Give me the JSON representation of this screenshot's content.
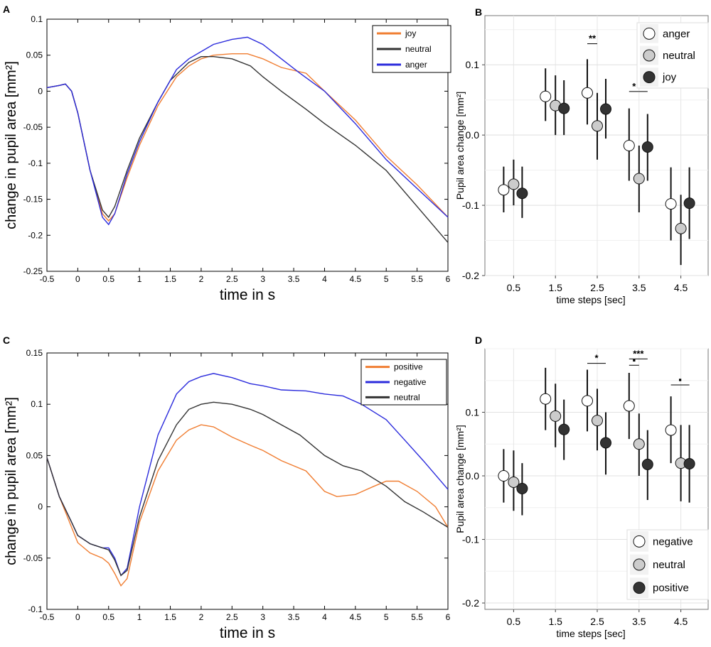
{
  "figure": {
    "panel_labels": [
      "A",
      "B",
      "C",
      "D"
    ]
  },
  "chart_data": [
    {
      "id": "A",
      "type": "line",
      "xlabel": "time in s",
      "ylabel": "change in pupil area [mm²]",
      "xlim": [
        -0.5,
        6
      ],
      "ylim": [
        -0.25,
        0.1
      ],
      "xticks": [
        "-0.5",
        "0",
        "0.5",
        "1",
        "1.5",
        "2",
        "2.5",
        "3",
        "3.5",
        "4",
        "4.5",
        "5",
        "5.5",
        "6"
      ],
      "yticks": [
        "-0.25",
        "-0.2",
        "-0.15",
        "-0.1",
        "-0.05",
        "0",
        "0.05",
        "0.1"
      ],
      "legend": [
        "joy",
        "neutral",
        "anger"
      ],
      "colors": {
        "joy": "#f07d31",
        "neutral": "#333333",
        "anger": "#2b2bdc"
      },
      "series": [
        {
          "name": "joy",
          "x": [
            -0.5,
            -0.3,
            -0.2,
            -0.1,
            0,
            0.2,
            0.4,
            0.5,
            0.6,
            0.8,
            1,
            1.3,
            1.6,
            1.8,
            2,
            2.2,
            2.5,
            2.75,
            3,
            3.3,
            3.7,
            4,
            4.5,
            5,
            5.5,
            6
          ],
          "y": [
            0.005,
            0.008,
            0.01,
            0.0,
            -0.03,
            -0.11,
            -0.17,
            -0.18,
            -0.17,
            -0.12,
            -0.075,
            -0.02,
            0.02,
            0.035,
            0.045,
            0.05,
            0.052,
            0.052,
            0.045,
            0.033,
            0.025,
            0.0,
            -0.04,
            -0.09,
            -0.13,
            -0.175
          ]
        },
        {
          "name": "neutral",
          "x": [
            -0.5,
            -0.3,
            -0.2,
            -0.1,
            0,
            0.2,
            0.4,
            0.5,
            0.6,
            0.8,
            1,
            1.3,
            1.5,
            1.8,
            2,
            2.2,
            2.5,
            2.8,
            3,
            3.3,
            3.7,
            4,
            4.5,
            5,
            5.5,
            6
          ],
          "y": [
            0.005,
            0.008,
            0.01,
            0.0,
            -0.03,
            -0.11,
            -0.165,
            -0.175,
            -0.16,
            -0.11,
            -0.065,
            -0.015,
            0.015,
            0.04,
            0.048,
            0.048,
            0.045,
            0.035,
            0.02,
            0.0,
            -0.025,
            -0.045,
            -0.075,
            -0.11,
            -0.16,
            -0.21
          ]
        },
        {
          "name": "anger",
          "x": [
            -0.5,
            -0.3,
            -0.2,
            -0.1,
            0,
            0.2,
            0.4,
            0.5,
            0.6,
            0.8,
            1,
            1.3,
            1.6,
            1.8,
            2,
            2.2,
            2.5,
            2.75,
            3,
            3.3,
            3.6,
            4,
            4.5,
            5,
            5.5,
            6
          ],
          "y": [
            0.005,
            0.008,
            0.01,
            0.0,
            -0.03,
            -0.11,
            -0.175,
            -0.185,
            -0.17,
            -0.115,
            -0.07,
            -0.015,
            0.03,
            0.045,
            0.055,
            0.065,
            0.072,
            0.075,
            0.065,
            0.045,
            0.025,
            0.0,
            -0.045,
            -0.095,
            -0.135,
            -0.175
          ]
        }
      ]
    },
    {
      "id": "B",
      "type": "scatter",
      "xlabel": "time steps [sec]",
      "ylabel": "Pupil area change [mm²]",
      "ylim": [
        -0.2,
        0.17
      ],
      "categories": [
        "0.5",
        "1.5",
        "2.5",
        "3.5",
        "4.5"
      ],
      "yticks": [
        "-0.2",
        "-0.1",
        "0.0",
        "0.1"
      ],
      "legend": [
        "anger",
        "neutral",
        "joy"
      ],
      "fills": {
        "anger": "#ffffff",
        "neutral": "#cccccc",
        "joy": "#333333"
      },
      "series": [
        {
          "name": "anger",
          "values": [
            -0.078,
            0.055,
            0.06,
            -0.015,
            -0.098
          ],
          "lower": [
            -0.11,
            0.02,
            0.015,
            -0.065,
            -0.15
          ],
          "upper": [
            -0.045,
            0.095,
            0.108,
            0.038,
            -0.046
          ]
        },
        {
          "name": "neutral",
          "values": [
            -0.07,
            0.042,
            0.013,
            -0.062,
            -0.133
          ],
          "lower": [
            -0.1,
            0.0,
            -0.035,
            -0.11,
            -0.185
          ],
          "upper": [
            -0.035,
            0.085,
            0.06,
            -0.015,
            -0.085
          ]
        },
        {
          "name": "joy",
          "values": [
            -0.083,
            0.038,
            0.037,
            -0.017,
            -0.097
          ],
          "lower": [
            -0.118,
            0.0,
            -0.005,
            -0.065,
            -0.148
          ],
          "upper": [
            -0.045,
            0.078,
            0.08,
            0.03,
            -0.046
          ]
        }
      ],
      "annotations": [
        {
          "label": "**",
          "category": "2.5",
          "y": 0.13,
          "from": "anger",
          "to": "neutral"
        },
        {
          "label": "*",
          "category": "3.5",
          "y": 0.062,
          "from": "anger",
          "to": "neutral"
        },
        {
          "label": "*",
          "category": "3.5",
          "y": 0.062,
          "from": "neutral",
          "to": "joy"
        }
      ]
    },
    {
      "id": "C",
      "type": "line",
      "xlabel": "time in s",
      "ylabel": "change in pupil area [mm²]",
      "xlim": [
        -0.5,
        6
      ],
      "ylim": [
        -0.1,
        0.15
      ],
      "xticks": [
        "-0.5",
        "0",
        "0.5",
        "1",
        "1.5",
        "2",
        "2.5",
        "3",
        "3.5",
        "4",
        "4.5",
        "5",
        "5.5",
        "6"
      ],
      "yticks": [
        "-0.1",
        "-0.05",
        "0",
        "0.05",
        "0.1",
        "0.15"
      ],
      "legend": [
        "positive",
        "negative",
        "neutral"
      ],
      "colors": {
        "positive": "#f07d31",
        "negative": "#2b2bdc",
        "neutral": "#333333"
      },
      "series": [
        {
          "name": "positive",
          "x": [
            -0.5,
            -0.3,
            -0.1,
            0,
            0.2,
            0.4,
            0.5,
            0.6,
            0.7,
            0.8,
            1,
            1.3,
            1.6,
            1.8,
            2,
            2.2,
            2.5,
            2.8,
            3,
            3.3,
            3.7,
            4,
            4.2,
            4.5,
            4.8,
            5,
            5.2,
            5.5,
            5.8,
            6
          ],
          "y": [
            0.048,
            0.01,
            -0.02,
            -0.035,
            -0.045,
            -0.05,
            -0.055,
            -0.065,
            -0.077,
            -0.07,
            -0.015,
            0.035,
            0.065,
            0.075,
            0.08,
            0.078,
            0.068,
            0.06,
            0.055,
            0.045,
            0.035,
            0.015,
            0.01,
            0.012,
            0.02,
            0.025,
            0.025,
            0.015,
            0.0,
            -0.02
          ]
        },
        {
          "name": "negative",
          "x": [
            -0.5,
            -0.3,
            -0.1,
            0,
            0.2,
            0.4,
            0.5,
            0.6,
            0.7,
            0.8,
            1,
            1.3,
            1.6,
            1.8,
            2,
            2.2,
            2.5,
            2.8,
            3,
            3.3,
            3.7,
            4,
            4.3,
            4.6,
            5,
            5.3,
            5.6,
            6
          ],
          "y": [
            0.048,
            0.01,
            -0.015,
            -0.028,
            -0.036,
            -0.04,
            -0.04,
            -0.05,
            -0.067,
            -0.06,
            0.0,
            0.07,
            0.11,
            0.122,
            0.127,
            0.13,
            0.126,
            0.12,
            0.118,
            0.114,
            0.113,
            0.11,
            0.108,
            0.1,
            0.085,
            0.065,
            0.045,
            0.017
          ]
        },
        {
          "name": "neutral",
          "x": [
            -0.5,
            -0.3,
            -0.1,
            0,
            0.2,
            0.4,
            0.5,
            0.6,
            0.7,
            0.8,
            1,
            1.3,
            1.6,
            1.8,
            2,
            2.2,
            2.5,
            2.8,
            3,
            3.3,
            3.6,
            4,
            4.3,
            4.6,
            5,
            5.3,
            5.6,
            6
          ],
          "y": [
            0.048,
            0.01,
            -0.015,
            -0.028,
            -0.036,
            -0.04,
            -0.042,
            -0.052,
            -0.067,
            -0.062,
            -0.01,
            0.045,
            0.08,
            0.095,
            0.1,
            0.102,
            0.1,
            0.095,
            0.09,
            0.08,
            0.07,
            0.05,
            0.04,
            0.035,
            0.02,
            0.005,
            -0.005,
            -0.02
          ]
        }
      ]
    },
    {
      "id": "D",
      "type": "scatter",
      "xlabel": "time steps [sec]",
      "ylabel": "Pupil area change [mm²]",
      "ylim": [
        -0.21,
        0.2
      ],
      "categories": [
        "0.5",
        "1.5",
        "2.5",
        "3.5",
        "4.5"
      ],
      "yticks": [
        "-0.2",
        "-0.1",
        "0.0",
        "0.1"
      ],
      "legend": [
        "negative",
        "neutral",
        "positive"
      ],
      "fills": {
        "negative": "#ffffff",
        "neutral": "#cccccc",
        "positive": "#333333"
      },
      "series": [
        {
          "name": "negative",
          "values": [
            0.0,
            0.121,
            0.118,
            0.11,
            0.072
          ],
          "lower": [
            -0.042,
            0.072,
            0.07,
            0.058,
            0.02
          ],
          "upper": [
            0.042,
            0.17,
            0.167,
            0.162,
            0.125
          ]
        },
        {
          "name": "neutral",
          "values": [
            -0.01,
            0.094,
            0.087,
            0.05,
            0.02
          ],
          "lower": [
            -0.055,
            0.045,
            0.04,
            0.0,
            -0.04
          ],
          "upper": [
            0.04,
            0.145,
            0.137,
            0.098,
            0.08
          ]
        },
        {
          "name": "positive",
          "values": [
            -0.02,
            0.073,
            0.052,
            0.018,
            0.019
          ],
          "lower": [
            -0.062,
            0.025,
            0.002,
            -0.038,
            -0.042
          ],
          "upper": [
            0.02,
            0.12,
            0.1,
            0.072,
            0.08
          ]
        }
      ],
      "annotations": [
        {
          "label": "*",
          "category": "2.5",
          "y": 0.177,
          "from": "negative",
          "to": "positive"
        },
        {
          "label": "***",
          "category": "3.5",
          "y": 0.184,
          "from": "negative",
          "to": "positive"
        },
        {
          "label": "▪",
          "category": "3.5",
          "y": 0.174,
          "from": "negative",
          "to": "neutral"
        },
        {
          "label": "▪",
          "category": "4.5",
          "y": 0.143,
          "from": "negative",
          "to": "positive"
        }
      ]
    }
  ]
}
